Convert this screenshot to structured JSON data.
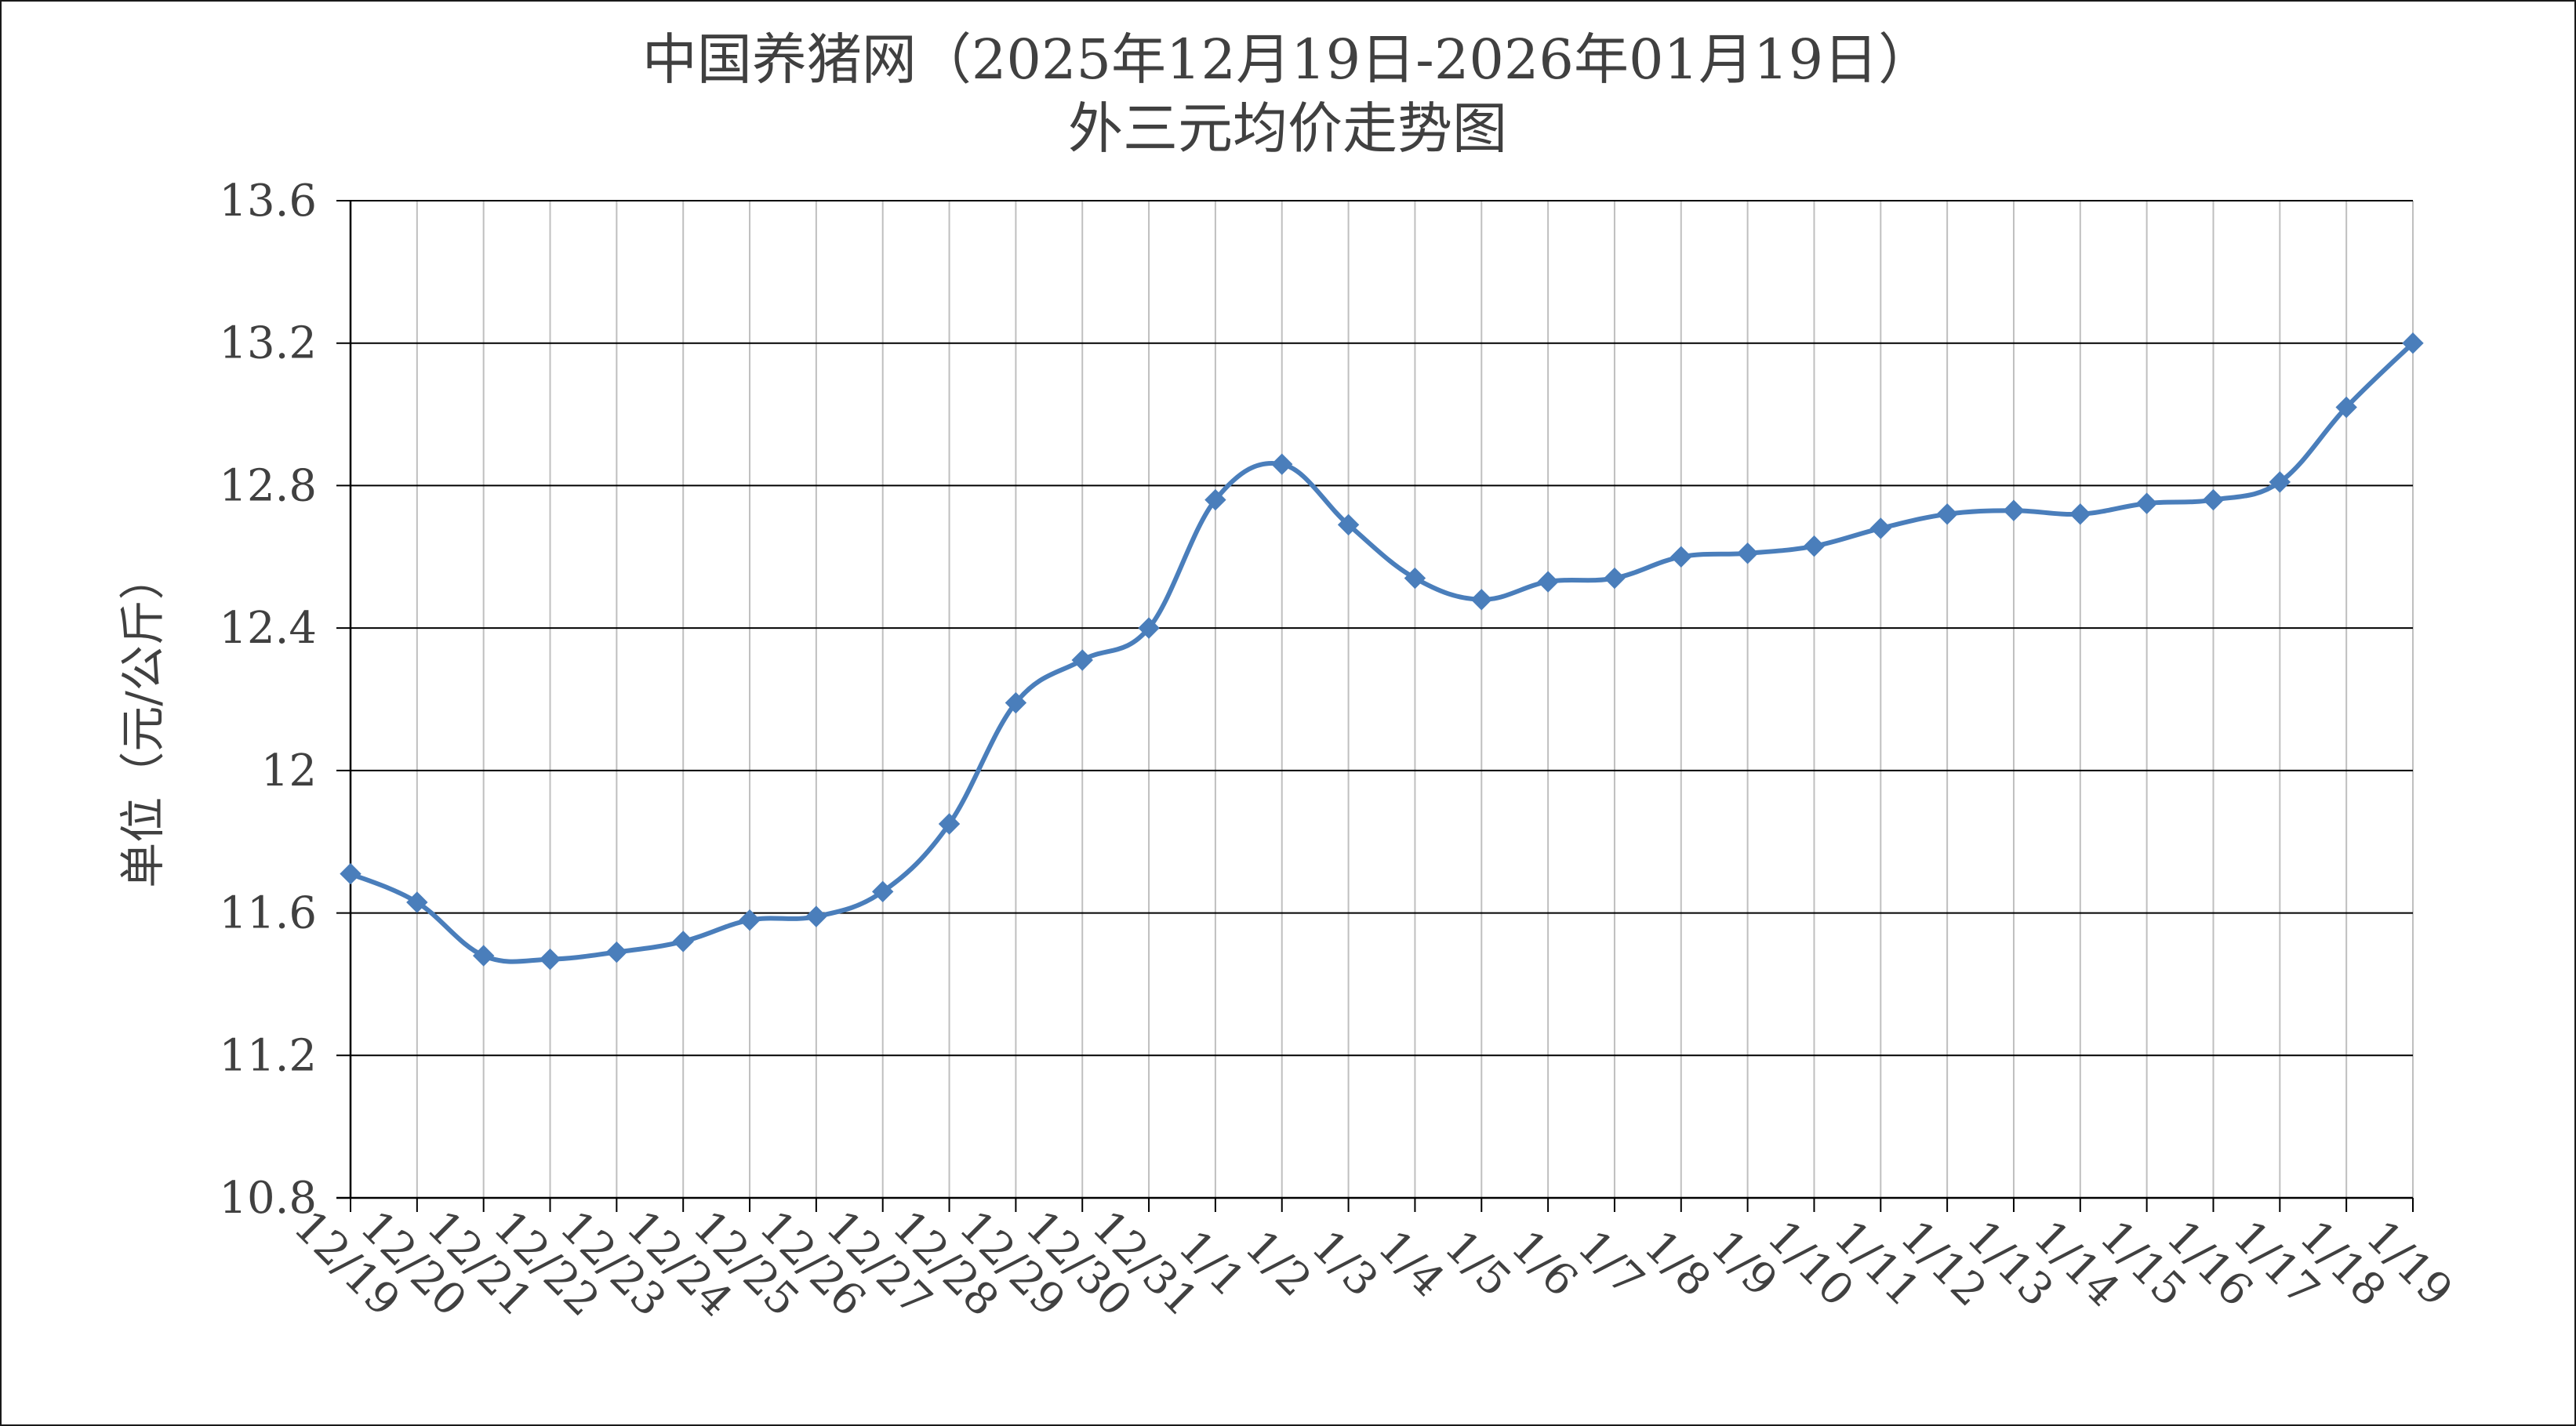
{
  "chart_data": {
    "type": "line",
    "title": "中国养猪网（2025年12月19日-2026年01月19日）",
    "subtitle": "外三元均价走势图",
    "xlabel": "",
    "ylabel": "单位（元/公斤）",
    "ylim": [
      10.8,
      13.6
    ],
    "y_ticks": [
      "10.8",
      "11.2",
      "11.6",
      "12",
      "12.4",
      "12.8",
      "13.2",
      "13.6"
    ],
    "grid": true,
    "smooth": true,
    "marker": "diamond",
    "legend": "none",
    "colors": {
      "line": "#4a7ebb",
      "marker": "#4a7ebb",
      "grid": "#000000",
      "vgrid": "#bfbfbf",
      "text": "#404040"
    },
    "categories": [
      "12/19",
      "12/20",
      "12/21",
      "12/22",
      "12/23",
      "12/24",
      "12/25",
      "12/26",
      "12/27",
      "12/28",
      "12/29",
      "12/30",
      "12/31",
      "1/1",
      "1/2",
      "1/3",
      "1/4",
      "1/5",
      "1/6",
      "1/7",
      "1/8",
      "1/9",
      "1/10",
      "1/11",
      "1/12",
      "1/13",
      "1/14",
      "1/15",
      "1/16",
      "1/17",
      "1/18",
      "1/19"
    ],
    "series": [
      {
        "values": [
          11.71,
          11.63,
          11.48,
          11.47,
          11.49,
          11.52,
          11.58,
          11.59,
          11.66,
          11.85,
          12.19,
          12.31,
          12.4,
          12.76,
          12.86,
          12.69,
          12.54,
          12.48,
          12.53,
          12.54,
          12.6,
          12.61,
          12.63,
          12.68,
          12.72,
          12.73,
          12.72,
          12.75,
          12.76,
          12.81,
          13.02,
          13.2
        ]
      }
    ]
  }
}
